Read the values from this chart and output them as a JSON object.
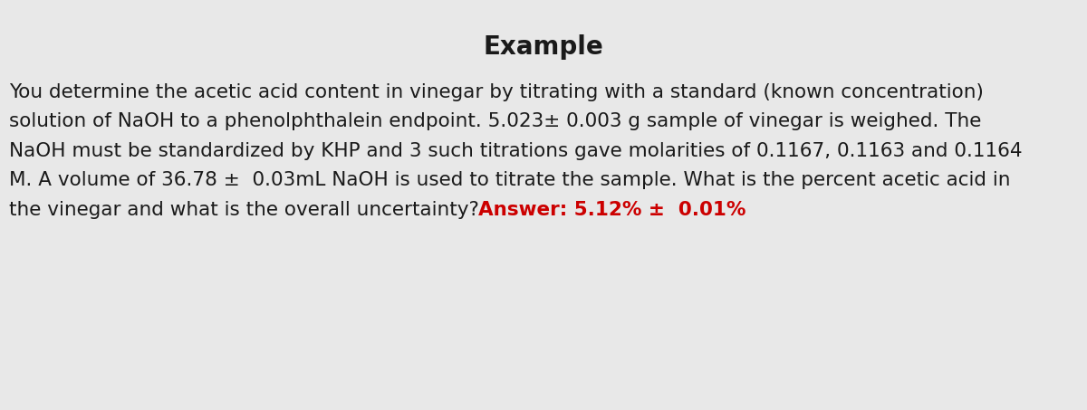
{
  "title": "Example",
  "title_fontsize": 20,
  "title_fontweight": "bold",
  "background_color": "#e8e8e8",
  "text_color": "#1a1a1a",
  "answer_color": "#cc0000",
  "body_lines": [
    "You determine the acetic acid content in vinegar by titrating with a standard (known concentration)",
    "solution of NaOH to a phenolphthalein endpoint. 5.023± 0.003 g sample of vinegar is weighed. The",
    "NaOH must be standardized by KHP and 3 such titrations gave molarities of 0.1167, 0.1163 and 0.1164",
    "M. A volume of 36.78 ±  0.03mL NaOH is used to titrate the sample. What is the percent acetic acid in",
    "the vinegar and what is the overall uncertainty?"
  ],
  "answer_text": "Answer: 5.12% ±  0.01%",
  "body_fontsize": 15.5,
  "fig_width": 12.0,
  "fig_height": 4.53,
  "dpi": 100
}
